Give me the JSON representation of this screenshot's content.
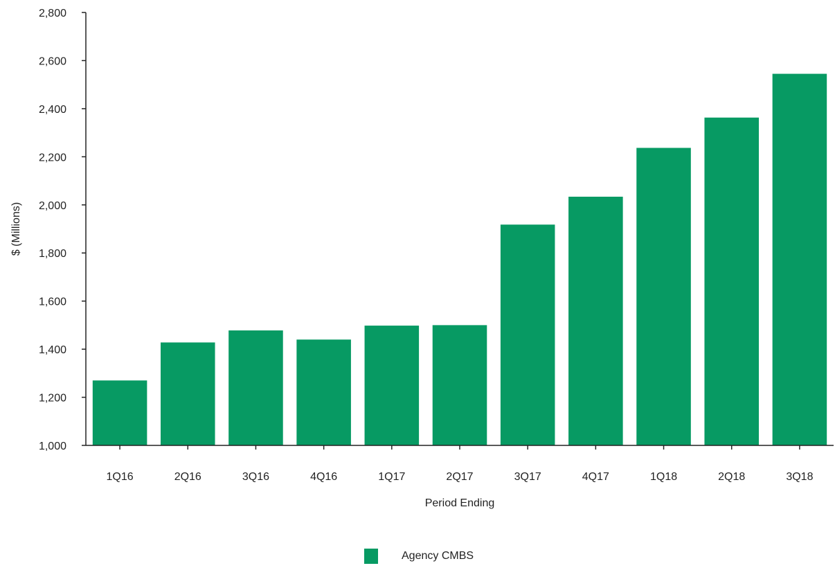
{
  "chart_data": {
    "type": "bar",
    "categories": [
      "1Q16",
      "2Q16",
      "3Q16",
      "4Q16",
      "1Q17",
      "2Q17",
      "3Q17",
      "4Q17",
      "1Q18",
      "2Q18",
      "3Q18"
    ],
    "series": [
      {
        "name": "Agency CMBS",
        "values": [
          1270,
          1428,
          1478,
          1440,
          1498,
          1500,
          1918,
          2034,
          2237,
          2363,
          2545
        ]
      }
    ],
    "xlabel": "Period Ending",
    "ylabel": "$ (Millions)",
    "ylim": [
      1000,
      2800
    ],
    "yticks": [
      "1,000",
      "1,200",
      "1,400",
      "1,600",
      "1,800",
      "2,000",
      "2,200",
      "2,400",
      "2,600",
      "2,800"
    ],
    "grid": false,
    "legend_position": "bottom-center",
    "colors": {
      "bar": "#079a63",
      "axis": "#222222"
    }
  }
}
